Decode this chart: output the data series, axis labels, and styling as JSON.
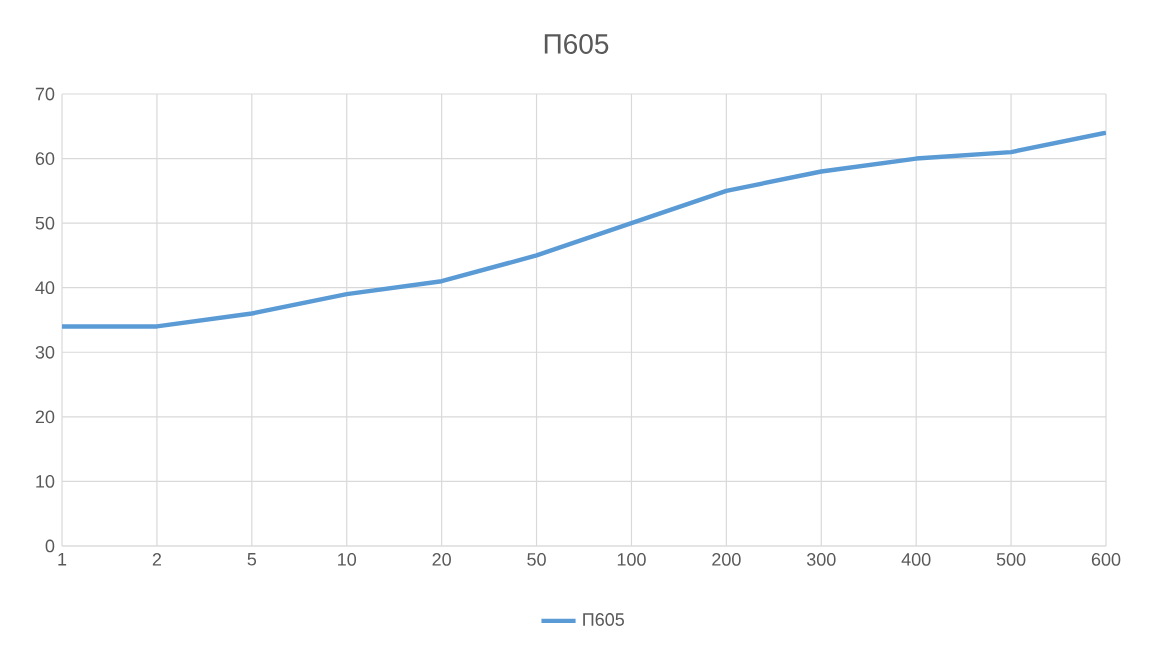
{
  "chart_data": {
    "type": "line",
    "title": "П605",
    "categories": [
      "1",
      "2",
      "5",
      "10",
      "20",
      "50",
      "100",
      "200",
      "300",
      "400",
      "500",
      "600"
    ],
    "series": [
      {
        "name": "П605",
        "color": "#5b9bd5",
        "values": [
          34,
          34,
          36,
          39,
          41,
          45,
          50,
          55,
          58,
          60,
          61,
          64
        ]
      }
    ],
    "ylim": [
      0,
      70
    ],
    "yticks": [
      0,
      10,
      20,
      30,
      40,
      50,
      60,
      70
    ],
    "grid": true,
    "legend": "bottom",
    "marker": "none",
    "line_style": "solid"
  }
}
